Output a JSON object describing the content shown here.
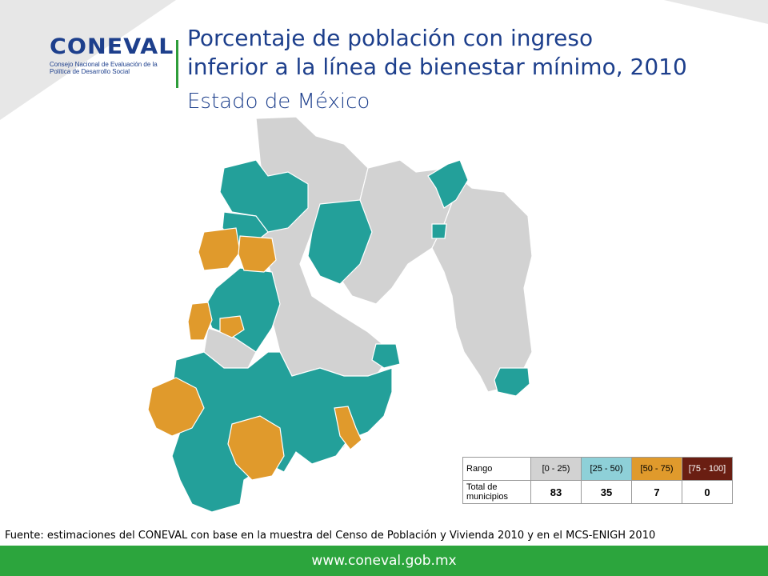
{
  "header": {
    "logo_word": "CONEVAL",
    "logo_subtitle": "Consejo Nacional de Evaluación de la Política de Desarrollo Social",
    "title_line1": "Porcentaje de población con ingreso",
    "title_line2": "inferior a la línea de bienestar mínimo, 2010",
    "subtitle": "Estado de México"
  },
  "colors": {
    "range_0_25": "#d2d2d2",
    "range_25_50": "#23a09a",
    "range_50_75": "#e09a2c",
    "range_75_100": "#6a1e12",
    "title": "#1d3f8c",
    "footer": "#2ca53d"
  },
  "legend": {
    "row1_label": "Rango",
    "row2_label": "Total de municipios",
    "ranges": [
      "[0 - 25)",
      "[25 - 50)",
      "[50 - 75)",
      "[75 - 100]"
    ],
    "counts": [
      "83",
      "35",
      "7",
      "0"
    ]
  },
  "source": "Fuente: estimaciones del CONEVAL con base en la muestra del Censo de Población y Vivienda 2010 y en el MCS-ENIGH 2010",
  "footer": "www.coneval.gob.mx"
}
